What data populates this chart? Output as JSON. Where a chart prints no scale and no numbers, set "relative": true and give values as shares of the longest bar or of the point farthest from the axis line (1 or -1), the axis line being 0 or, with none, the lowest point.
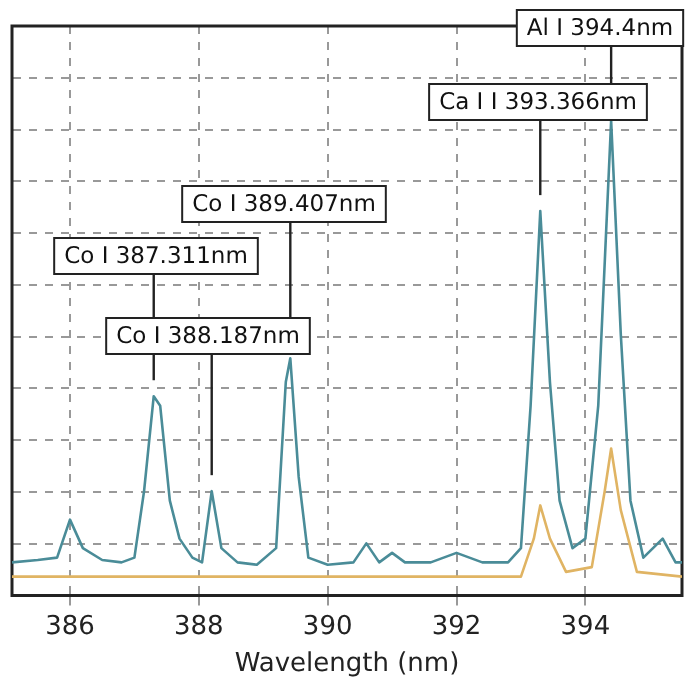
{
  "chart_data": {
    "type": "line",
    "xlabel": "Wavelength (nm)",
    "relative": true,
    "xlim": [
      385.1,
      395.5
    ],
    "xticks": [
      386,
      388,
      390,
      392,
      394
    ],
    "grid": true,
    "legend": false,
    "marker": "none",
    "series": [
      {
        "color": "#4a8c98",
        "x": [
          385.1,
          385.5,
          385.8,
          386.0,
          386.2,
          386.5,
          386.8,
          387.0,
          387.15,
          387.3,
          387.4,
          387.55,
          387.7,
          387.9,
          388.05,
          388.2,
          388.35,
          388.6,
          388.9,
          389.2,
          389.35,
          389.42,
          389.55,
          389.7,
          390.0,
          390.4,
          390.6,
          390.8,
          391.0,
          391.2,
          391.6,
          392.0,
          392.4,
          392.8,
          393.0,
          393.15,
          393.3,
          393.45,
          393.6,
          393.8,
          394.0,
          394.2,
          394.4,
          394.55,
          394.7,
          394.9,
          395.2,
          395.4,
          395.5
        ],
        "values": [
          0.07,
          0.075,
          0.08,
          0.16,
          0.1,
          0.075,
          0.07,
          0.08,
          0.22,
          0.42,
          0.4,
          0.2,
          0.12,
          0.08,
          0.07,
          0.22,
          0.1,
          0.07,
          0.065,
          0.1,
          0.45,
          0.5,
          0.25,
          0.08,
          0.065,
          0.07,
          0.11,
          0.07,
          0.09,
          0.07,
          0.07,
          0.09,
          0.07,
          0.07,
          0.1,
          0.4,
          0.81,
          0.45,
          0.2,
          0.1,
          0.12,
          0.4,
          1.0,
          0.55,
          0.2,
          0.08,
          0.12,
          0.07,
          0.07
        ]
      },
      {
        "color": "#e0b463",
        "x": [
          385.1,
          393.0,
          393.2,
          393.3,
          393.45,
          393.7,
          394.1,
          394.3,
          394.4,
          394.55,
          394.8,
          395.5
        ],
        "values": [
          0.04,
          0.04,
          0.12,
          0.19,
          0.12,
          0.05,
          0.06,
          0.22,
          0.31,
          0.18,
          0.05,
          0.04
        ]
      }
    ],
    "annotations": [
      {
        "text": "Al I 394.4nm",
        "x": 394.4,
        "y": 1.0
      },
      {
        "text": "Ca I I 393.366nm",
        "x": 393.3,
        "y": 0.81
      },
      {
        "text": "Co I 389.407nm",
        "x": 389.42,
        "y": 0.5
      },
      {
        "text": "Co I 387.311nm",
        "x": 387.3,
        "y": 0.42
      },
      {
        "text": "Co I 388.187nm",
        "x": 388.2,
        "y": 0.22
      }
    ]
  }
}
